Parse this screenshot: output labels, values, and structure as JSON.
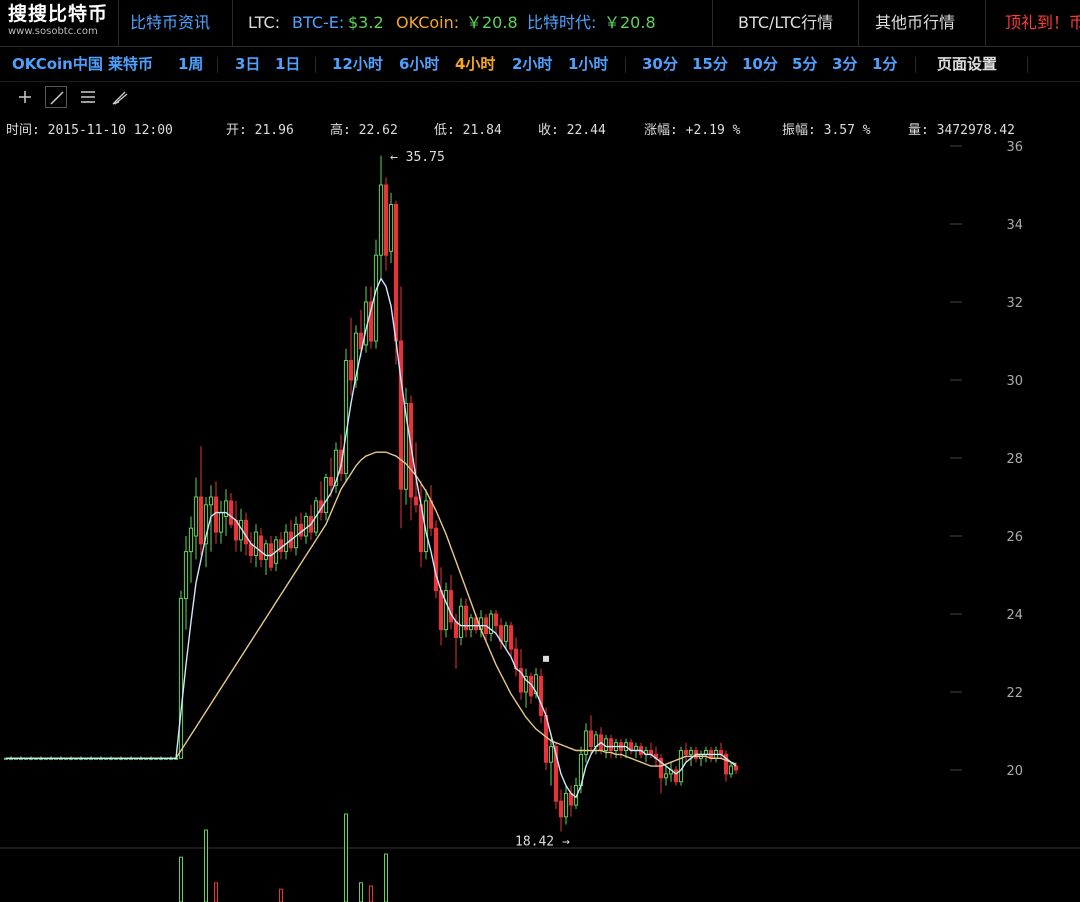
{
  "header": {
    "brand_zh": "搜搜比特币",
    "brand_en": "www.sosobtc.com",
    "news_link": "比特币资讯",
    "ticker": {
      "ltc_label": "LTC:",
      "btce_label": "BTC-E:",
      "btce_value": "$3.2",
      "okcoin_label": "OKCoin:",
      "okcoin_value": "￥20.8",
      "btctrade_label": "比特时代:",
      "btctrade_value": "￥20.8"
    },
    "nav_btc_ltc": "BTC/LTC行情",
    "nav_other": "其他币行情",
    "nav_gift": "顶礼到！币"
  },
  "toolbar": {
    "market": "OKCoin中国 莱特币",
    "intervals_a": [
      "1周"
    ],
    "intervals_b": [
      "3日",
      "1日"
    ],
    "intervals_c": [
      "12小时",
      "6小时",
      "4小时",
      "2小时",
      "1小时"
    ],
    "intervals_d": [
      "30分",
      "15分",
      "10分",
      "5分",
      "3分",
      "1分"
    ],
    "active_interval": "4小时",
    "page_settings": "页面设置"
  },
  "ohlc": {
    "time": "时间: 2015-11-10 12:00",
    "open": "开: 21.96",
    "high": "高: 22.62",
    "low": "低: 21.84",
    "close": "收: 22.44",
    "change": "涨幅: +2.19 %",
    "amplitude": "振幅: 3.57 %",
    "volume": "量: 3472978.42"
  },
  "colors": {
    "up": "#5fd35a",
    "down": "#e8333a",
    "ma_short": "#cfe8ff",
    "ma_long": "#e8c98a",
    "accent_blue": "#4ea2ff",
    "active_orange": "#f5a623",
    "gift_red": "#ff3a3a"
  },
  "icons": [
    "crosshair-icon",
    "line-draw-icon",
    "parallel-lines-icon",
    "pen-icon"
  ],
  "chart_data": {
    "type": "candlestick",
    "ylim": [
      17.5,
      36
    ],
    "y_ticks": [
      20,
      22,
      24,
      26,
      28,
      30,
      32,
      34,
      36
    ],
    "annotations": {
      "max_label": "← 35.75",
      "min_label": "18.42 →"
    },
    "candles_ohlc": [
      [
        20.3,
        20.3,
        20.3,
        20.3
      ],
      [
        20.3,
        20.35,
        20.25,
        20.3
      ],
      [
        20.3,
        20.3,
        20.3,
        20.3
      ],
      [
        20.3,
        20.35,
        20.25,
        20.3
      ],
      [
        20.3,
        20.3,
        20.3,
        20.3
      ],
      [
        20.3,
        20.35,
        20.25,
        20.3
      ],
      [
        20.3,
        20.3,
        20.3,
        20.3
      ],
      [
        20.3,
        20.35,
        20.25,
        20.3
      ],
      [
        20.3,
        20.3,
        20.3,
        20.3
      ],
      [
        20.3,
        20.35,
        20.25,
        20.3
      ],
      [
        20.3,
        20.3,
        20.3,
        20.3
      ],
      [
        20.3,
        20.35,
        20.25,
        20.3
      ],
      [
        20.3,
        20.3,
        20.3,
        20.3
      ],
      [
        20.3,
        20.35,
        20.25,
        20.3
      ],
      [
        20.3,
        20.3,
        20.3,
        20.3
      ],
      [
        20.3,
        20.35,
        20.25,
        20.3
      ],
      [
        20.3,
        20.3,
        20.3,
        20.3
      ],
      [
        20.3,
        20.35,
        20.25,
        20.3
      ],
      [
        20.3,
        20.3,
        20.3,
        20.3
      ],
      [
        20.3,
        20.35,
        20.25,
        20.3
      ],
      [
        20.3,
        20.3,
        20.3,
        20.3
      ],
      [
        20.3,
        20.35,
        20.25,
        20.3
      ],
      [
        20.3,
        20.3,
        20.3,
        20.3
      ],
      [
        20.3,
        20.35,
        20.25,
        20.3
      ],
      [
        20.3,
        20.3,
        20.3,
        20.3
      ],
      [
        20.3,
        20.35,
        20.25,
        20.3
      ],
      [
        20.3,
        20.3,
        20.3,
        20.3
      ],
      [
        20.3,
        20.35,
        20.25,
        20.3
      ],
      [
        20.3,
        20.3,
        20.3,
        20.3
      ],
      [
        20.3,
        20.35,
        20.25,
        20.3
      ],
      [
        20.3,
        20.3,
        20.3,
        20.3
      ],
      [
        20.3,
        20.35,
        20.25,
        20.3
      ],
      [
        20.3,
        20.3,
        20.3,
        20.3
      ],
      [
        20.3,
        20.35,
        20.25,
        20.3
      ],
      [
        20.3,
        20.3,
        20.3,
        20.3
      ],
      [
        20.3,
        24.6,
        20.3,
        24.4
      ],
      [
        24.4,
        26.0,
        23.6,
        25.6
      ],
      [
        25.6,
        26.5,
        24.8,
        26.2
      ],
      [
        26.0,
        27.5,
        25.4,
        27.0
      ],
      [
        27.0,
        28.3,
        25.5,
        25.8
      ],
      [
        25.8,
        27.0,
        25.2,
        26.8
      ],
      [
        26.8,
        27.3,
        25.6,
        27.0
      ],
      [
        27.0,
        27.4,
        25.8,
        26.1
      ],
      [
        26.1,
        26.9,
        25.8,
        26.6
      ],
      [
        26.5,
        27.2,
        26.0,
        26.9
      ],
      [
        26.9,
        27.1,
        26.2,
        26.3
      ],
      [
        26.4,
        26.9,
        25.6,
        25.9
      ],
      [
        25.9,
        26.7,
        25.6,
        26.4
      ],
      [
        26.4,
        26.6,
        25.5,
        25.8
      ],
      [
        25.8,
        26.1,
        25.3,
        25.5
      ],
      [
        25.5,
        26.3,
        25.2,
        26.1
      ],
      [
        26.0,
        26.2,
        25.2,
        25.4
      ],
      [
        25.4,
        25.9,
        25.0,
        25.8
      ],
      [
        25.8,
        26.0,
        25.1,
        25.2
      ],
      [
        25.3,
        26.0,
        25.1,
        25.9
      ],
      [
        25.9,
        26.1,
        25.4,
        25.6
      ],
      [
        25.6,
        26.3,
        25.4,
        26.1
      ],
      [
        26.1,
        26.4,
        25.6,
        25.7
      ],
      [
        25.7,
        26.5,
        25.5,
        26.3
      ],
      [
        26.3,
        26.6,
        25.9,
        26.0
      ],
      [
        26.0,
        26.6,
        25.8,
        26.5
      ],
      [
        26.5,
        26.8,
        25.9,
        26.1
      ],
      [
        26.1,
        27.0,
        26.0,
        26.9
      ],
      [
        26.9,
        27.4,
        26.4,
        26.6
      ],
      [
        26.6,
        27.6,
        26.4,
        27.5
      ],
      [
        27.5,
        28.0,
        27.0,
        27.3
      ],
      [
        27.3,
        28.4,
        27.1,
        28.2
      ],
      [
        28.2,
        28.6,
        27.4,
        27.6
      ],
      [
        27.6,
        30.8,
        27.4,
        30.5
      ],
      [
        30.5,
        31.6,
        29.6,
        30.0
      ],
      [
        30.0,
        31.4,
        29.8,
        31.2
      ],
      [
        31.2,
        31.8,
        30.6,
        30.8
      ],
      [
        30.9,
        32.4,
        30.7,
        32.0
      ],
      [
        32.0,
        32.4,
        30.8,
        31.0
      ],
      [
        31.0,
        33.6,
        30.8,
        33.2
      ],
      [
        33.2,
        35.75,
        32.6,
        35.0
      ],
      [
        35.0,
        35.2,
        32.8,
        33.2
      ],
      [
        33.3,
        34.8,
        33.0,
        34.5
      ],
      [
        34.5,
        34.6,
        30.4,
        31.0
      ],
      [
        31.0,
        32.4,
        26.2,
        27.2
      ],
      [
        27.2,
        29.8,
        26.8,
        29.4
      ],
      [
        29.4,
        29.6,
        26.4,
        27.0
      ],
      [
        27.0,
        28.4,
        26.6,
        26.8
      ],
      [
        26.8,
        27.4,
        25.2,
        25.6
      ],
      [
        25.6,
        27.2,
        25.4,
        26.9
      ],
      [
        26.9,
        27.3,
        26.0,
        26.2
      ],
      [
        26.2,
        26.4,
        24.4,
        24.6
      ],
      [
        24.6,
        25.2,
        23.2,
        23.6
      ],
      [
        23.6,
        24.8,
        23.4,
        24.6
      ],
      [
        24.6,
        25.0,
        23.6,
        23.8
      ],
      [
        23.8,
        24.0,
        22.6,
        23.4
      ],
      [
        23.4,
        24.4,
        23.2,
        24.2
      ],
      [
        24.2,
        24.4,
        23.4,
        23.6
      ],
      [
        23.6,
        24.0,
        23.4,
        23.9
      ],
      [
        23.9,
        24.0,
        23.5,
        23.6
      ],
      [
        23.6,
        24.1,
        23.4,
        23.9
      ],
      [
        23.9,
        24.0,
        23.3,
        23.5
      ],
      [
        23.5,
        24.1,
        23.3,
        24.0
      ],
      [
        24.0,
        24.1,
        23.5,
        23.7
      ],
      [
        23.7,
        23.9,
        23.1,
        23.3
      ],
      [
        23.3,
        23.8,
        23.1,
        23.7
      ],
      [
        23.7,
        23.8,
        22.9,
        23.1
      ],
      [
        23.1,
        23.4,
        22.4,
        22.6
      ],
      [
        22.6,
        23.1,
        21.8,
        22.0
      ],
      [
        22.0,
        22.6,
        21.6,
        22.4
      ],
      [
        22.4,
        22.5,
        21.7,
        21.9
      ],
      [
        21.96,
        22.62,
        21.84,
        22.44
      ],
      [
        22.4,
        22.6,
        21.2,
        21.4
      ],
      [
        21.4,
        21.6,
        20.0,
        20.2
      ],
      [
        20.2,
        20.8,
        19.6,
        20.6
      ],
      [
        20.6,
        20.7,
        19.0,
        19.2
      ],
      [
        19.2,
        19.5,
        18.42,
        18.8
      ],
      [
        18.8,
        19.6,
        18.6,
        19.4
      ],
      [
        19.4,
        19.6,
        18.8,
        19.1
      ],
      [
        19.1,
        19.8,
        19.0,
        19.6
      ],
      [
        19.6,
        20.6,
        19.4,
        20.4
      ],
      [
        20.4,
        21.2,
        20.2,
        21.0
      ],
      [
        21.0,
        21.4,
        20.4,
        20.6
      ],
      [
        20.6,
        21.0,
        20.4,
        20.9
      ],
      [
        20.9,
        21.1,
        20.4,
        20.5
      ],
      [
        20.5,
        20.9,
        20.3,
        20.8
      ],
      [
        20.8,
        20.9,
        20.3,
        20.5
      ],
      [
        20.5,
        20.8,
        20.3,
        20.7
      ],
      [
        20.7,
        20.8,
        20.3,
        20.5
      ],
      [
        20.5,
        20.8,
        20.3,
        20.7
      ],
      [
        20.7,
        20.8,
        20.4,
        20.5
      ],
      [
        20.5,
        20.7,
        20.3,
        20.6
      ],
      [
        20.6,
        20.7,
        20.3,
        20.4
      ],
      [
        20.4,
        20.6,
        20.2,
        20.5
      ],
      [
        20.5,
        20.7,
        20.3,
        20.4
      ],
      [
        20.4,
        20.6,
        20.1,
        20.3
      ],
      [
        20.3,
        20.4,
        19.4,
        19.8
      ],
      [
        19.8,
        20.1,
        19.6,
        19.9
      ],
      [
        19.9,
        20.2,
        19.7,
        20.0
      ],
      [
        20.0,
        20.1,
        19.6,
        19.7
      ],
      [
        19.7,
        20.6,
        19.6,
        20.5
      ],
      [
        20.5,
        20.7,
        20.2,
        20.4
      ],
      [
        20.4,
        20.6,
        20.1,
        20.5
      ],
      [
        20.5,
        20.6,
        20.2,
        20.3
      ],
      [
        20.3,
        20.5,
        20.1,
        20.4
      ],
      [
        20.4,
        20.6,
        20.2,
        20.5
      ],
      [
        20.5,
        20.6,
        20.2,
        20.3
      ],
      [
        20.3,
        20.6,
        20.2,
        20.5
      ],
      [
        20.5,
        20.7,
        20.3,
        20.4
      ],
      [
        20.4,
        20.5,
        19.7,
        19.9
      ],
      [
        19.9,
        20.2,
        19.8,
        20.1
      ],
      [
        20.1,
        20.2,
        19.9,
        20.0
      ]
    ],
    "ma_short": [
      20.3,
      20.3,
      20.3,
      20.3,
      20.3,
      20.3,
      20.3,
      20.3,
      20.3,
      20.3,
      20.3,
      20.3,
      20.3,
      20.3,
      20.3,
      20.3,
      20.3,
      20.3,
      20.3,
      20.3,
      20.3,
      20.3,
      20.3,
      20.3,
      20.3,
      20.3,
      20.3,
      20.3,
      20.3,
      20.3,
      20.3,
      20.3,
      20.3,
      20.3,
      20.3,
      21.5,
      22.7,
      23.8,
      24.8,
      25.4,
      26.0,
      26.5,
      26.6,
      26.6,
      26.6,
      26.5,
      26.4,
      26.2,
      26.0,
      25.8,
      25.7,
      25.6,
      25.5,
      25.5,
      25.6,
      25.7,
      25.8,
      25.9,
      26.0,
      26.1,
      26.2,
      26.3,
      26.5,
      26.7,
      26.9,
      27.1,
      27.4,
      27.8,
      28.6,
      29.4,
      30.1,
      30.7,
      31.3,
      31.8,
      32.3,
      32.6,
      32.4,
      31.9,
      31.0,
      30.0,
      29.1,
      28.3,
      27.5,
      26.8,
      26.1,
      25.6,
      25.0,
      24.6,
      24.3,
      24.0,
      23.8,
      23.7,
      23.7,
      23.7,
      23.7,
      23.7,
      23.7,
      23.6,
      23.5,
      23.3,
      23.1,
      22.9,
      22.6,
      22.5,
      22.3,
      22.2,
      22.0,
      21.7,
      21.4,
      20.9,
      20.4,
      19.9,
      19.6,
      19.4,
      19.3,
      19.6,
      20.1,
      20.4,
      20.6,
      20.7,
      20.6,
      20.6,
      20.6,
      20.6,
      20.6,
      20.5,
      20.5,
      20.5,
      20.4,
      20.4,
      20.3,
      20.2,
      20.1,
      20.0,
      19.9,
      20.0,
      20.2,
      20.3,
      20.4,
      20.4,
      20.4,
      20.4,
      20.4,
      20.4,
      20.3,
      20.2,
      20.1
    ],
    "ma_long": [
      20.3,
      20.3,
      20.3,
      20.3,
      20.3,
      20.3,
      20.3,
      20.3,
      20.3,
      20.3,
      20.3,
      20.3,
      20.3,
      20.3,
      20.3,
      20.3,
      20.3,
      20.3,
      20.3,
      20.3,
      20.3,
      20.3,
      20.3,
      20.3,
      20.3,
      20.3,
      20.3,
      20.3,
      20.3,
      20.3,
      20.3,
      20.3,
      20.3,
      20.3,
      20.3,
      20.5,
      20.7,
      20.9,
      21.1,
      21.3,
      21.5,
      21.7,
      21.9,
      22.1,
      22.3,
      22.5,
      22.7,
      22.9,
      23.1,
      23.3,
      23.5,
      23.7,
      23.9,
      24.1,
      24.3,
      24.5,
      24.7,
      24.9,
      25.1,
      25.3,
      25.5,
      25.7,
      25.9,
      26.1,
      26.3,
      26.6,
      26.9,
      27.2,
      27.4,
      27.6,
      27.8,
      27.95,
      28.05,
      28.1,
      28.15,
      28.15,
      28.15,
      28.1,
      28.05,
      27.95,
      27.85,
      27.7,
      27.55,
      27.35,
      27.15,
      26.9,
      26.65,
      26.35,
      26.05,
      25.7,
      25.35,
      25.0,
      24.65,
      24.3,
      23.95,
      23.6,
      23.3,
      23.0,
      22.7,
      22.45,
      22.2,
      21.95,
      21.75,
      21.55,
      21.35,
      21.2,
      21.05,
      20.95,
      20.85,
      20.75,
      20.7,
      20.65,
      20.6,
      20.55,
      20.5,
      20.5,
      20.5,
      20.5,
      20.5,
      20.5,
      20.45,
      20.45,
      20.4,
      20.4,
      20.35,
      20.3,
      20.25,
      20.2,
      20.15,
      20.1,
      20.1,
      20.1,
      20.15,
      20.2,
      20.25,
      20.3,
      20.35,
      20.35,
      20.35,
      20.35,
      20.35,
      20.3,
      20.3,
      20.3,
      20.25,
      20.2,
      20.15
    ],
    "volume_bars": [
      {
        "index": 35,
        "dir": "up",
        "value": 0.28
      },
      {
        "index": 40,
        "dir": "up",
        "value": 0.45
      },
      {
        "index": 42,
        "dir": "down",
        "value": 0.12
      },
      {
        "index": 55,
        "dir": "down",
        "value": 0.08
      },
      {
        "index": 68,
        "dir": "up",
        "value": 0.55
      },
      {
        "index": 71,
        "dir": "up",
        "value": 0.12
      },
      {
        "index": 73,
        "dir": "down",
        "value": 0.1
      },
      {
        "index": 76,
        "dir": "up",
        "value": 0.3
      }
    ]
  }
}
